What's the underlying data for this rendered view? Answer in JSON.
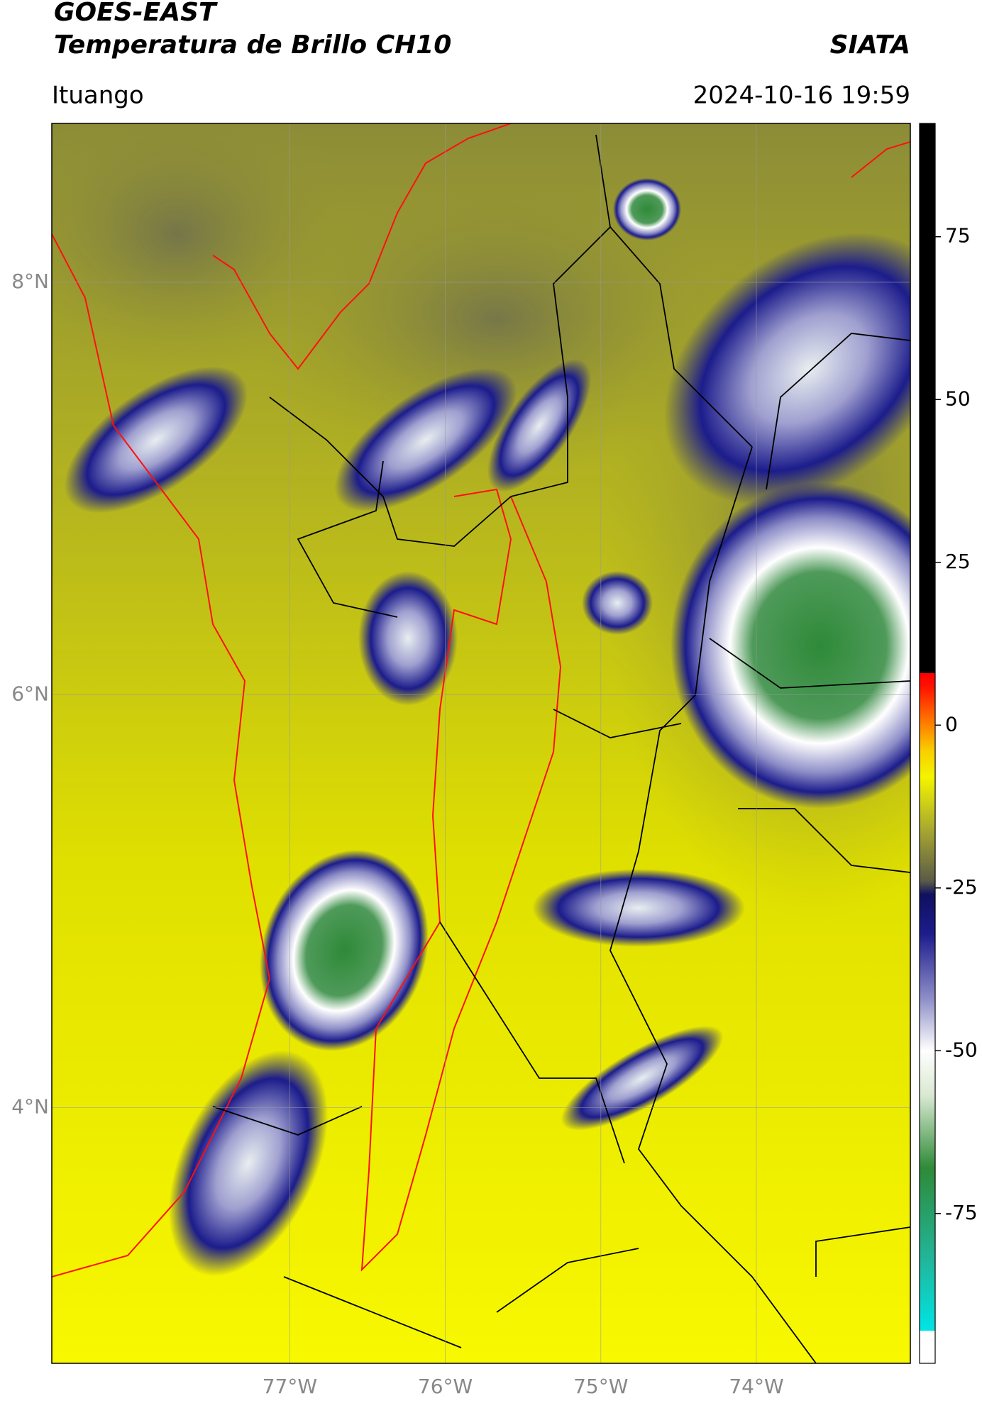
{
  "header": {
    "title": "GOES-EAST",
    "subtitle": "Temperatura de Brillo CH10",
    "source": "SIATA",
    "location": "Ituango",
    "datetime": "2024-10-16 19:59"
  },
  "map": {
    "lat_range": [
      2.76,
      8.77
    ],
    "lon_range": [
      -78.53,
      -73.01
    ],
    "lat_ticks": [
      {
        "value": 8,
        "label": "8°N"
      },
      {
        "value": 6,
        "label": "6°N"
      },
      {
        "value": 4,
        "label": "4°N"
      }
    ],
    "lon_ticks": [
      {
        "value": -77,
        "label": "77°W"
      },
      {
        "value": -76,
        "label": "76°W"
      },
      {
        "value": -75,
        "label": "75°W"
      },
      {
        "value": -74,
        "label": "74°W"
      }
    ],
    "grid": true
  },
  "colorbar": {
    "range": [
      -98,
      92.4
    ],
    "ticks": [
      75,
      50,
      25,
      0,
      -25,
      -50,
      -75
    ],
    "colorscale": [
      [
        -98,
        "#ffffff"
      ],
      [
        -93,
        "#ffffff"
      ],
      [
        -93,
        "#00e5e5"
      ],
      [
        -82,
        "#22b59a"
      ],
      [
        -68,
        "#2e8a38"
      ],
      [
        -57,
        "#d8e8d0"
      ],
      [
        -50,
        "#ffffff"
      ],
      [
        -42,
        "#8e8ec8"
      ],
      [
        -32,
        "#1c1c8c"
      ],
      [
        -26,
        "#101060"
      ],
      [
        -24,
        "#5a5a48"
      ],
      [
        -16,
        "#a8a830"
      ],
      [
        -8,
        "#f4f400"
      ],
      [
        -4,
        "#f8d000"
      ],
      [
        1,
        "#ff7000"
      ],
      [
        6,
        "#ff1000"
      ],
      [
        8,
        "#ff0000"
      ],
      [
        8,
        "#000000"
      ],
      [
        92.4,
        "#000000"
      ]
    ]
  }
}
